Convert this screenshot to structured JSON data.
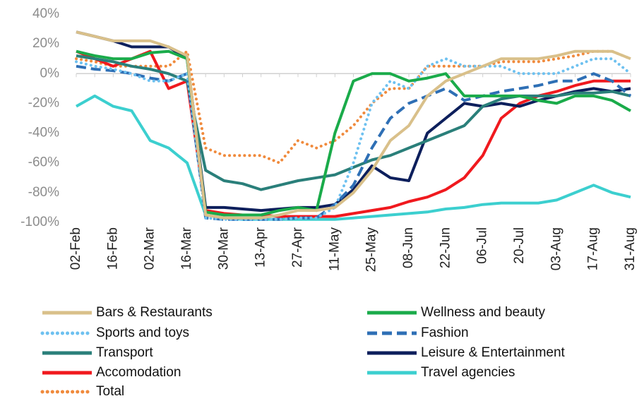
{
  "chart_data": {
    "type": "line",
    "categories": [
      "02-Feb",
      null,
      "16-Feb",
      null,
      "02-Mar",
      null,
      "16-Mar",
      null,
      "30-Mar",
      null,
      "13-Apr",
      null,
      "27-Apr",
      null,
      "11-May",
      null,
      "25-May",
      null,
      "08-Jun",
      null,
      "22-Jun",
      null,
      "06-Jul",
      null,
      "20-Jul",
      null,
      "03-Aug",
      null,
      "17-Aug",
      null,
      "31-Aug"
    ],
    "ylim": [
      -100,
      40
    ],
    "yticks": [
      {
        "value": -100,
        "label": "-100%"
      },
      {
        "value": -80,
        "label": "-80%"
      },
      {
        "value": -60,
        "label": "-60%"
      },
      {
        "value": -40,
        "label": "-40%"
      },
      {
        "value": -20,
        "label": "-20%"
      },
      {
        "value": 0,
        "label": "0%"
      },
      {
        "value": 20,
        "label": "20%"
      },
      {
        "value": 40,
        "label": "40%"
      }
    ],
    "series": [
      {
        "name": "Bars & Restaurants",
        "color": "#d9c08a",
        "style": "solid",
        "values": [
          28,
          25,
          22,
          22,
          22,
          18,
          12,
          -95,
          -97,
          -97,
          -97,
          -95,
          -92,
          -92,
          -90,
          -80,
          -65,
          -45,
          -35,
          -15,
          -5,
          0,
          5,
          10,
          10,
          10,
          12,
          15,
          15,
          15,
          10
        ]
      },
      {
        "name": "Wellness and beauty",
        "color": "#1aab4a",
        "style": "solid",
        "values": [
          15,
          12,
          10,
          10,
          14,
          15,
          10,
          -93,
          -95,
          -95,
          -95,
          -92,
          -90,
          -92,
          -40,
          -5,
          0,
          0,
          -5,
          -3,
          0,
          -15,
          -15,
          -15,
          -15,
          -18,
          -20,
          -15,
          -15,
          -18,
          -25
        ]
      },
      {
        "name": "Sports and toys",
        "color": "#6ec1f0",
        "style": "dotted",
        "values": [
          8,
          5,
          3,
          0,
          -5,
          -5,
          0,
          -97,
          -98,
          -98,
          -98,
          -98,
          -97,
          -97,
          -90,
          -60,
          -20,
          -5,
          -10,
          5,
          10,
          5,
          5,
          5,
          0,
          0,
          0,
          5,
          10,
          10,
          0
        ]
      },
      {
        "name": "Fashion",
        "color": "#2e6fb5",
        "style": "dashed",
        "values": [
          5,
          3,
          2,
          0,
          -3,
          -5,
          0,
          -97,
          -98,
          -98,
          -98,
          -98,
          -97,
          -97,
          -88,
          -75,
          -50,
          -30,
          -20,
          -15,
          -10,
          -18,
          -15,
          -12,
          -10,
          -8,
          -5,
          -5,
          0,
          -5,
          -15
        ]
      },
      {
        "name": "Transport",
        "color": "#2a7f7a",
        "style": "solid",
        "values": [
          12,
          10,
          8,
          5,
          3,
          0,
          -5,
          -65,
          -72,
          -74,
          -78,
          -75,
          -72,
          -70,
          -68,
          -63,
          -58,
          -55,
          -50,
          -45,
          -40,
          -35,
          -22,
          -17,
          -15,
          -15,
          -15,
          -13,
          -13,
          -12,
          -15
        ]
      },
      {
        "name": "Leisure & Entertainment",
        "color": "#0d1f5c",
        "style": "solid",
        "values": [
          28,
          25,
          22,
          18,
          18,
          18,
          10,
          -90,
          -90,
          -91,
          -92,
          -91,
          -90,
          -90,
          -88,
          -78,
          -62,
          -70,
          -72,
          -40,
          -30,
          -20,
          -22,
          -20,
          -22,
          -18,
          -15,
          -12,
          -10,
          -12,
          -10
        ]
      },
      {
        "name": "Accomodation",
        "color": "#f0191e",
        "style": "solid",
        "values": [
          15,
          10,
          5,
          10,
          15,
          -10,
          -5,
          -92,
          -94,
          -95,
          -95,
          -96,
          -96,
          -96,
          -96,
          -94,
          -92,
          -90,
          -86,
          -83,
          -78,
          -70,
          -55,
          -30,
          -20,
          -15,
          -12,
          -8,
          -5,
          -5,
          -5
        ]
      },
      {
        "name": "Travel agencies",
        "color": "#3ccfcf",
        "style": "solid",
        "values": [
          -22,
          -15,
          -22,
          -25,
          -45,
          -50,
          -60,
          -95,
          -97,
          -98,
          -98,
          -98,
          -98,
          -98,
          -98,
          -97,
          -96,
          -95,
          -94,
          -93,
          -91,
          -90,
          -88,
          -87,
          -87,
          -87,
          -85,
          -80,
          -75,
          -80,
          -83
        ]
      },
      {
        "name": "Total",
        "color": "#f08a3c",
        "style": "dotted",
        "values": [
          10,
          8,
          5,
          5,
          5,
          5,
          15,
          -50,
          -55,
          -55,
          -55,
          -60,
          -45,
          -50,
          -45,
          -35,
          -20,
          -10,
          -10,
          5,
          5,
          5,
          5,
          8,
          8,
          8,
          10,
          12,
          15,
          15,
          10
        ]
      }
    ]
  }
}
